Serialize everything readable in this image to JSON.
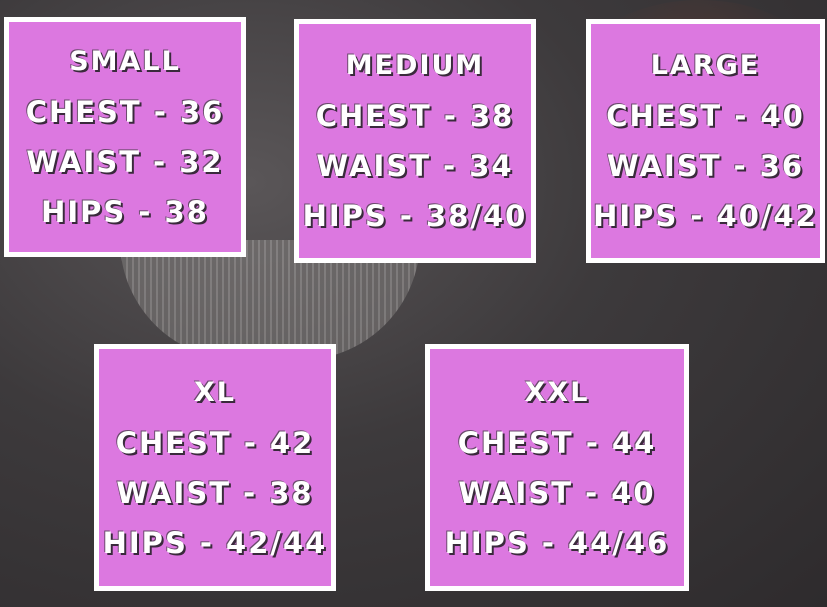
{
  "colors": {
    "box_fill": "#dc78e0",
    "box_border": "#ffffff",
    "background": "#3d3a3c"
  },
  "sizes": [
    {
      "name": "SMALL",
      "chest": "CHEST - 36",
      "waist": "WAIST - 32",
      "hips": "HIPS - 38"
    },
    {
      "name": "MEDIUM",
      "chest": "CHEST - 38",
      "waist": "WAIST - 34",
      "hips": "HIPS - 38/40"
    },
    {
      "name": "LARGE",
      "chest": "CHEST - 40",
      "waist": "WAIST - 36",
      "hips": "HIPS - 40/42"
    },
    {
      "name": "XL",
      "chest": "CHEST - 42",
      "waist": "WAIST - 38",
      "hips": "HIPS - 42/44"
    },
    {
      "name": "XXL",
      "chest": "CHEST - 44",
      "waist": "WAIST - 40",
      "hips": "HIPS - 44/46"
    }
  ]
}
